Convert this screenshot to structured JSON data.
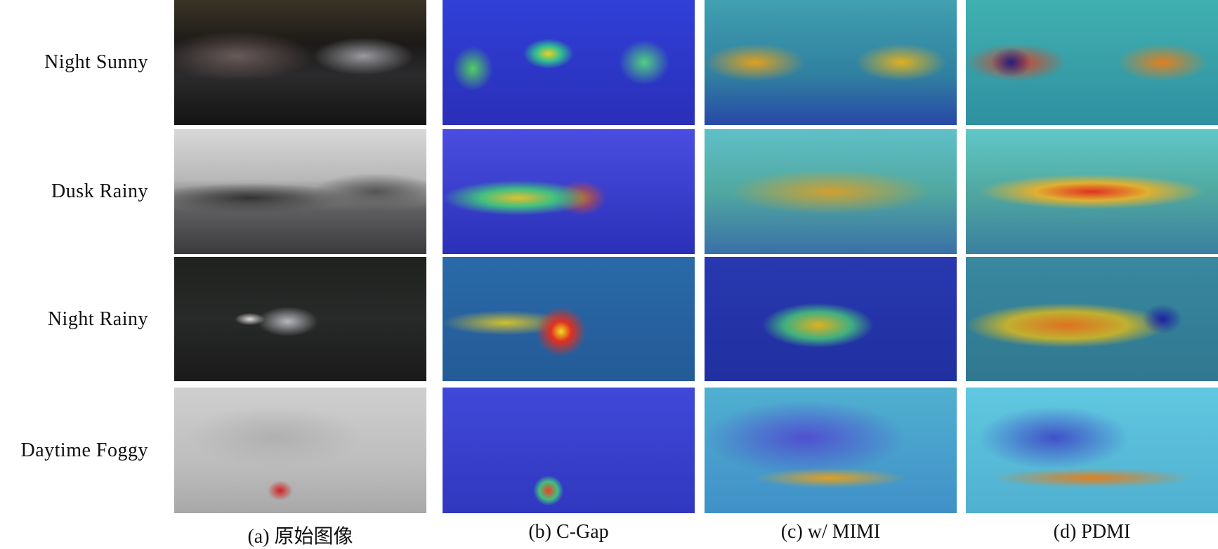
{
  "rows": [
    {
      "label": "Night Sunny"
    },
    {
      "label": "Dusk Rainy"
    },
    {
      "label": "Night Rainy"
    },
    {
      "label": "Daytime Foggy"
    }
  ],
  "columns": [
    {
      "caption": "(a) 原始图像"
    },
    {
      "caption": "(b) C-Gap"
    },
    {
      "caption": "(c) w/ MIMI"
    },
    {
      "caption": "(d) PDMI"
    }
  ]
}
